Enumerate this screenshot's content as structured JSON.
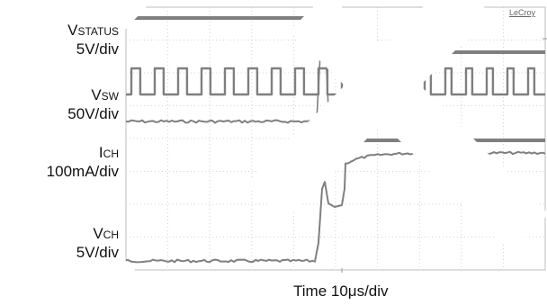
{
  "chart_data": {
    "type": "line",
    "xlabel": "Time 10μs/div",
    "x_divisions": 10,
    "y_divisions": 8,
    "grid": true,
    "brand": "LeCroy",
    "channels": [
      {
        "name": "VSTATUS",
        "label_main": "V",
        "label_sub": "STATUS",
        "scale": "5V/div",
        "color": "#888888",
        "description_points": [
          [
            0,
            4
          ],
          [
            4.9,
            4
          ],
          [
            4.9,
            3
          ],
          [
            10,
            3
          ]
        ]
      },
      {
        "name": "VSW",
        "label_main": "V",
        "label_sub": "SW",
        "scale": "50V/div",
        "color": "#888888",
        "switching": true
      },
      {
        "name": "ICH",
        "label_main": "I",
        "label_sub": "CH",
        "scale": "100mA/div",
        "color": "#888888"
      },
      {
        "name": "VCH",
        "label_main": "V",
        "label_sub": "CH",
        "scale": "5V/div",
        "color": "#888888"
      }
    ]
  }
}
